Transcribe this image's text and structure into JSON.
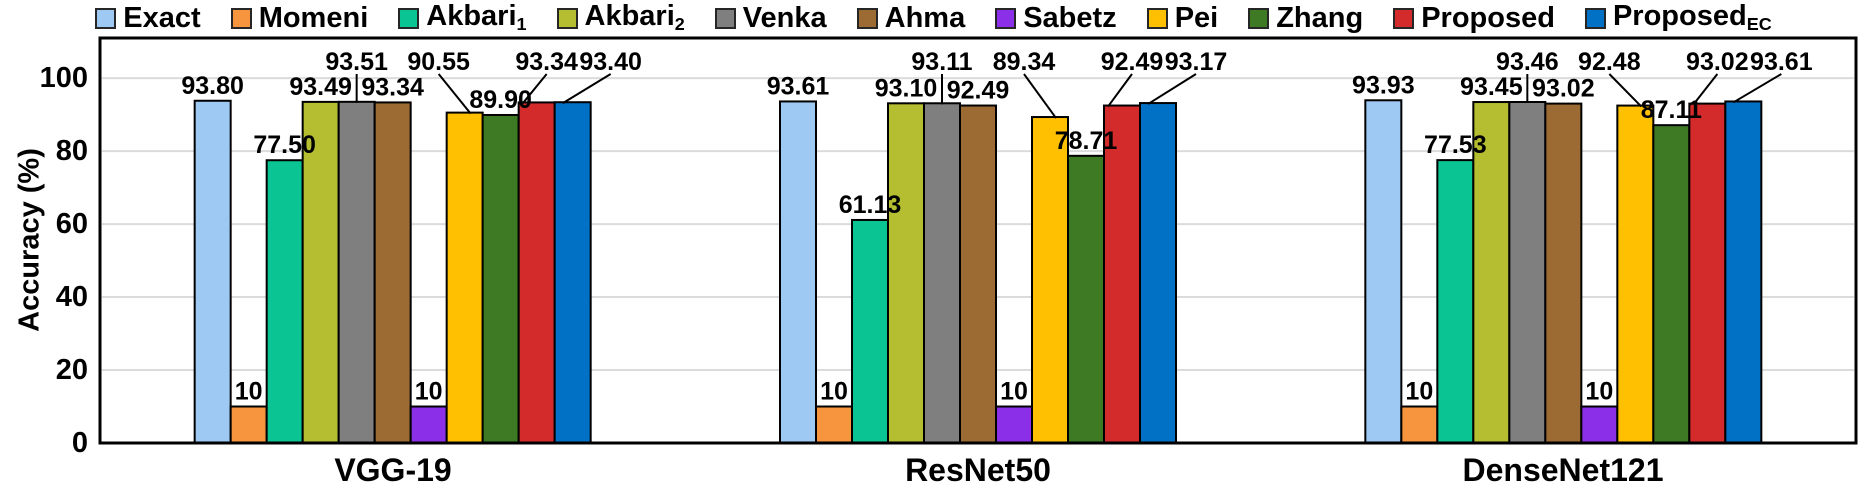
{
  "figure": {
    "background": "#FFFFFF"
  },
  "chart_data": {
    "type": "bar",
    "title": "",
    "xlabel": "",
    "ylabel": "Accuracy (%)",
    "categories": [
      "VGG-19",
      "ResNet50",
      "DenseNet121"
    ],
    "yticks": [
      0,
      20,
      40,
      60,
      80,
      100
    ],
    "ylim": [
      0,
      111
    ],
    "grid": "horizontal",
    "gridline_color": "#DBDBDB",
    "legend_position": "top",
    "bar_outline_color": "#000000",
    "series": [
      {
        "name": "Exact",
        "sub": "",
        "color": "#9DC9F2",
        "values": [
          93.8,
          93.61,
          93.93
        ],
        "labels": [
          "93.80",
          "93.61",
          "93.93"
        ],
        "raised": false
      },
      {
        "name": "Momeni",
        "sub": "",
        "color": "#F7943E",
        "values": [
          10,
          10,
          10
        ],
        "labels": [
          "10",
          "10",
          "10"
        ],
        "raised": false
      },
      {
        "name": "Akbari",
        "sub": "1",
        "color": "#0BC494",
        "values": [
          77.5,
          61.13,
          77.53
        ],
        "labels": [
          "77.50",
          "61.13",
          "77.53"
        ],
        "raised": false
      },
      {
        "name": "Akbari",
        "sub": "2",
        "color": "#B5BD30",
        "values": [
          93.49,
          93.1,
          93.45
        ],
        "labels": [
          "93.49",
          "93.10",
          "93.45"
        ],
        "raised": false
      },
      {
        "name": "Venka",
        "sub": "",
        "color": "#7F7F7F",
        "values": [
          93.51,
          93.11,
          93.46
        ],
        "labels": [
          "93.51",
          "93.11",
          "93.46"
        ],
        "raised": true,
        "label_dx": 0,
        "leader_dx": 0
      },
      {
        "name": "Ahma",
        "sub": "",
        "color": "#9C6A33",
        "values": [
          93.34,
          92.49,
          93.02
        ],
        "labels": [
          "93.34",
          "92.49",
          "93.02"
        ],
        "raised": false
      },
      {
        "name": "Sabetz",
        "sub": "",
        "color": "#8C2FE8",
        "values": [
          10,
          10,
          10
        ],
        "labels": [
          "10",
          "10",
          "10"
        ],
        "raised": false
      },
      {
        "name": "Pei",
        "sub": "",
        "color": "#FFC001",
        "values": [
          90.55,
          89.34,
          92.48
        ],
        "labels": [
          "90.55",
          "89.34",
          "92.48"
        ],
        "raised": true,
        "label_dx": -26,
        "leader_dx": 6
      },
      {
        "name": "Zhang",
        "sub": "",
        "color": "#3E7A23",
        "values": [
          89.9,
          78.71,
          87.11
        ],
        "labels": [
          "89.90",
          "78.71",
          "87.11"
        ],
        "raised": false
      },
      {
        "name": "Proposed",
        "sub": "",
        "color": "#D32B2B",
        "values": [
          93.34,
          92.49,
          93.02
        ],
        "labels": [
          "93.34",
          "92.49",
          "93.02"
        ],
        "raised": true,
        "label_dx": 10,
        "leader_dx": -14
      },
      {
        "name": "Proposed",
        "sub": "EC",
        "color": "#0071C5",
        "values": [
          93.4,
          93.17,
          93.61
        ],
        "labels": [
          "93.40",
          "93.17",
          "93.61"
        ],
        "raised": true,
        "label_dx": 38,
        "leader_dx": -10
      }
    ]
  }
}
